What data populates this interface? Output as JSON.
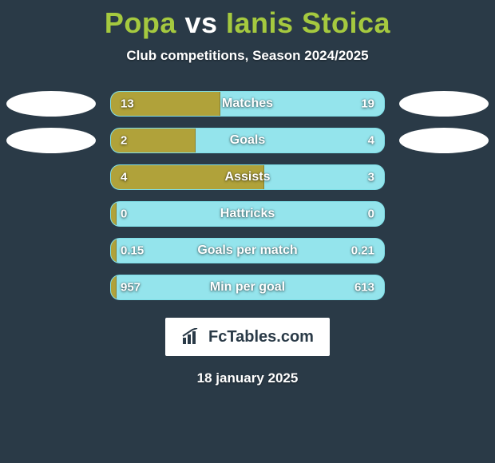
{
  "title": {
    "left": "Popa",
    "vs": "vs",
    "right": "Ianis Stoica"
  },
  "subtitle": "Club competitions, Season 2024/2025",
  "colors": {
    "background": "#2a3a47",
    "accent_title": "#a5c93f",
    "bar_bg": "#94e4ec",
    "bar_border": "#7fdfe8",
    "bar_fill": "#b0a23a",
    "text": "#ffffff",
    "badge_bg": "#ffffff",
    "badge_text": "#2a3a47"
  },
  "rows": [
    {
      "label": "Matches",
      "left": "13",
      "right": "19",
      "fill_pct": 40,
      "show_ovals": true
    },
    {
      "label": "Goals",
      "left": "2",
      "right": "4",
      "fill_pct": 31,
      "show_ovals": true
    },
    {
      "label": "Assists",
      "left": "4",
      "right": "3",
      "fill_pct": 56,
      "show_ovals": false
    },
    {
      "label": "Hattricks",
      "left": "0",
      "right": "0",
      "fill_pct": 2,
      "show_ovals": false
    },
    {
      "label": "Goals per match",
      "left": "0.15",
      "right": "0.21",
      "fill_pct": 2,
      "show_ovals": false
    },
    {
      "label": "Min per goal",
      "left": "957",
      "right": "613",
      "fill_pct": 2,
      "show_ovals": false
    }
  ],
  "logo": {
    "text": "FcTables.com"
  },
  "date": "18 january 2025"
}
